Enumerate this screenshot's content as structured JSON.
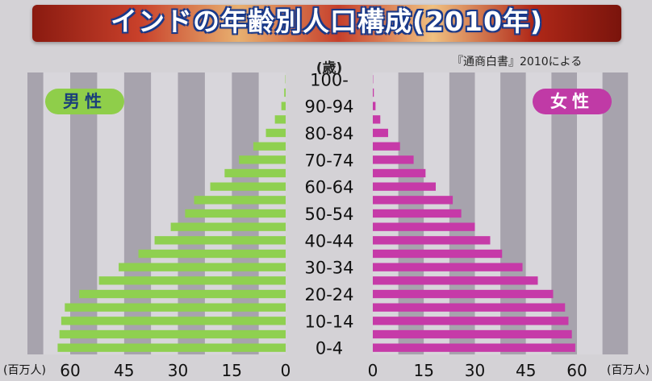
{
  "header": {
    "title": "インドの年齢別人口構成(2010年)",
    "source": "『通商白書』2010による"
  },
  "labels": {
    "age_unit": "(歳)",
    "male": "男性",
    "female": "女性",
    "unit_left": "(百万人)",
    "unit_right": "(百万人)"
  },
  "colors": {
    "male": "#8fd050",
    "female": "#c63aa8",
    "band_dark": "#a7a3ad",
    "band_light": "#d8d6db"
  },
  "chart_data": {
    "type": "bar",
    "orientation": "horizontal-population-pyramid",
    "categories": [
      "0-4",
      "5-9",
      "10-14",
      "15-19",
      "20-24",
      "25-29",
      "30-34",
      "35-39",
      "40-44",
      "45-49",
      "50-54",
      "55-59",
      "60-64",
      "65-69",
      "70-74",
      "75-79",
      "80-84",
      "85-89",
      "90-94",
      "95-99",
      "100-"
    ],
    "category_labels": [
      "0-4",
      "",
      "10-14",
      "",
      "20-24",
      "",
      "30-34",
      "",
      "40-44",
      "",
      "50-54",
      "",
      "60-64",
      "",
      "70-74",
      "",
      "80-84",
      "",
      "90-94",
      "",
      "100-"
    ],
    "series": [
      {
        "name": "男性",
        "values": [
          63.5,
          63.0,
          62.5,
          61.5,
          57.5,
          52.0,
          46.5,
          41.0,
          36.5,
          32.0,
          28.0,
          25.5,
          21.0,
          17.0,
          13.0,
          9.0,
          5.5,
          3.0,
          1.2,
          0.4,
          0.1
        ]
      },
      {
        "name": "女性",
        "values": [
          59.5,
          58.5,
          57.5,
          56.5,
          53.0,
          48.5,
          44.0,
          38.0,
          34.5,
          30.0,
          26.0,
          23.5,
          18.5,
          15.5,
          12.0,
          8.0,
          4.5,
          2.2,
          0.8,
          0.3,
          0.1
        ]
      }
    ],
    "xlim": [
      0,
      60
    ],
    "xticks": [
      0,
      15,
      30,
      45,
      60
    ],
    "xtick_labels_left": [
      "60",
      "45",
      "30",
      "15",
      "0"
    ],
    "xtick_labels_right": [
      "0",
      "15",
      "30",
      "45",
      "60"
    ],
    "grid": "alternating vertical bands every 7.5",
    "legend": "top-left (男性) and top-right (女性)"
  }
}
